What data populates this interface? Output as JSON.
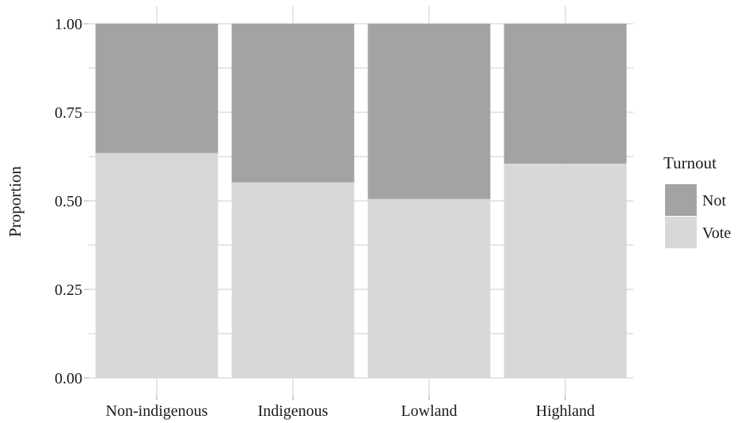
{
  "chart_data": {
    "type": "bar",
    "stacked": true,
    "categories": [
      "Non-indigenous",
      "Indigenous",
      "Lowland",
      "Highland"
    ],
    "series": [
      {
        "name": "Vote",
        "values": [
          0.635,
          0.552,
          0.505,
          0.605
        ],
        "color": "#d8d8d8"
      },
      {
        "name": "Not",
        "values": [
          0.365,
          0.448,
          0.495,
          0.395
        ],
        "color": "#a3a3a3"
      }
    ],
    "xlabel": "",
    "ylabel": "Proportion",
    "ylim": [
      0,
      1
    ],
    "yticks": [
      "0.00",
      "0.25",
      "0.50",
      "0.75",
      "1.00"
    ],
    "legend": {
      "title": "Turnout",
      "placement": "right",
      "entries": [
        "Not",
        "Vote"
      ]
    },
    "grid": true
  }
}
